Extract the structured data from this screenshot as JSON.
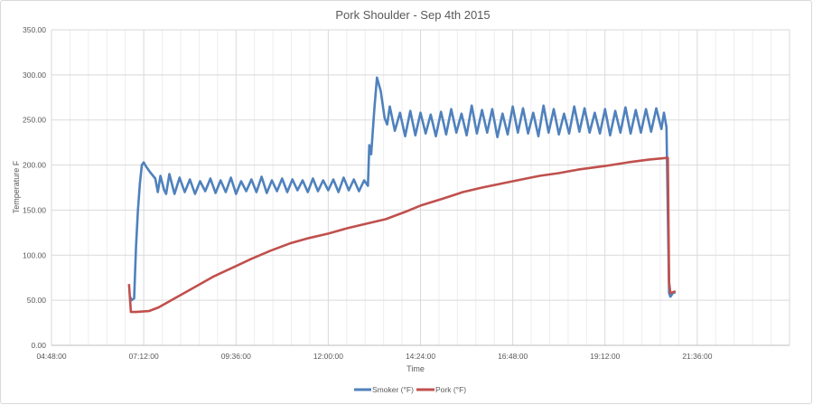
{
  "chart_data": {
    "type": "line",
    "title": "Pork Shoulder - Sep 4th 2015",
    "xlabel": "Time",
    "ylabel": "Temperature F",
    "xlim": [
      "04:48:00",
      "24:00:00"
    ],
    "ylim": [
      0,
      350
    ],
    "x_ticks": [
      "04:48:00",
      "07:12:00",
      "09:36:00",
      "12:00:00",
      "14:24:00",
      "16:48:00",
      "19:12:00",
      "21:36:00"
    ],
    "y_ticks": [
      "0.00",
      "50.00",
      "100.00",
      "150.00",
      "200.00",
      "250.00",
      "300.00",
      "350.00"
    ],
    "grid": true,
    "legend_position": "bottom",
    "series": [
      {
        "name": "Smoker (°F)",
        "color": "#4f81bd",
        "points": [
          [
            "06:50",
            55
          ],
          [
            "06:53",
            50
          ],
          [
            "06:57",
            52
          ],
          [
            "07:00",
            110
          ],
          [
            "07:03",
            150
          ],
          [
            "07:06",
            180
          ],
          [
            "07:09",
            200
          ],
          [
            "07:12",
            203
          ],
          [
            "07:16",
            198
          ],
          [
            "07:22",
            192
          ],
          [
            "07:30",
            185
          ],
          [
            "07:34",
            170
          ],
          [
            "07:38",
            188
          ],
          [
            "07:44",
            172
          ],
          [
            "07:47",
            168
          ],
          [
            "07:52",
            190
          ],
          [
            "08:00",
            168
          ],
          [
            "08:08",
            186
          ],
          [
            "08:16",
            170
          ],
          [
            "08:24",
            184
          ],
          [
            "08:32",
            168
          ],
          [
            "08:40",
            182
          ],
          [
            "08:48",
            171
          ],
          [
            "08:56",
            185
          ],
          [
            "09:04",
            169
          ],
          [
            "09:12",
            183
          ],
          [
            "09:20",
            170
          ],
          [
            "09:28",
            186
          ],
          [
            "09:36",
            168
          ],
          [
            "09:44",
            182
          ],
          [
            "09:52",
            171
          ],
          [
            "10:00",
            184
          ],
          [
            "10:08",
            170
          ],
          [
            "10:16",
            187
          ],
          [
            "10:24",
            169
          ],
          [
            "10:32",
            183
          ],
          [
            "10:40",
            171
          ],
          [
            "10:48",
            185
          ],
          [
            "10:56",
            170
          ],
          [
            "11:04",
            184
          ],
          [
            "11:12",
            172
          ],
          [
            "11:20",
            183
          ],
          [
            "11:28",
            170
          ],
          [
            "11:36",
            185
          ],
          [
            "11:44",
            171
          ],
          [
            "11:52",
            183
          ],
          [
            "12:00",
            172
          ],
          [
            "12:08",
            184
          ],
          [
            "12:16",
            170
          ],
          [
            "12:24",
            186
          ],
          [
            "12:32",
            172
          ],
          [
            "12:40",
            184
          ],
          [
            "12:48",
            171
          ],
          [
            "12:56",
            183
          ],
          [
            "13:02",
            177
          ],
          [
            "13:04",
            222
          ],
          [
            "13:07",
            212
          ],
          [
            "13:12",
            262
          ],
          [
            "13:16",
            297
          ],
          [
            "13:22",
            282
          ],
          [
            "13:28",
            252
          ],
          [
            "13:32",
            245
          ],
          [
            "13:36",
            265
          ],
          [
            "13:44",
            238
          ],
          [
            "13:52",
            258
          ],
          [
            "14:00",
            232
          ],
          [
            "14:08",
            260
          ],
          [
            "14:16",
            233
          ],
          [
            "14:24",
            258
          ],
          [
            "14:32",
            235
          ],
          [
            "14:40",
            256
          ],
          [
            "14:48",
            232
          ],
          [
            "14:56",
            259
          ],
          [
            "15:04",
            234
          ],
          [
            "15:12",
            262
          ],
          [
            "15:20",
            236
          ],
          [
            "15:28",
            257
          ],
          [
            "15:36",
            233
          ],
          [
            "15:44",
            266
          ],
          [
            "15:52",
            235
          ],
          [
            "16:00",
            261
          ],
          [
            "16:08",
            236
          ],
          [
            "16:16",
            262
          ],
          [
            "16:24",
            231
          ],
          [
            "16:32",
            257
          ],
          [
            "16:40",
            234
          ],
          [
            "16:48",
            265
          ],
          [
            "16:56",
            236
          ],
          [
            "17:04",
            263
          ],
          [
            "17:12",
            235
          ],
          [
            "17:20",
            258
          ],
          [
            "17:28",
            232
          ],
          [
            "17:36",
            266
          ],
          [
            "17:44",
            236
          ],
          [
            "17:52",
            262
          ],
          [
            "18:00",
            234
          ],
          [
            "18:08",
            257
          ],
          [
            "18:16",
            235
          ],
          [
            "18:24",
            265
          ],
          [
            "18:32",
            237
          ],
          [
            "18:40",
            263
          ],
          [
            "18:48",
            236
          ],
          [
            "18:56",
            258
          ],
          [
            "19:04",
            235
          ],
          [
            "19:12",
            262
          ],
          [
            "19:20",
            233
          ],
          [
            "19:28",
            260
          ],
          [
            "19:36",
            236
          ],
          [
            "19:44",
            264
          ],
          [
            "19:52",
            235
          ],
          [
            "20:00",
            261
          ],
          [
            "20:08",
            236
          ],
          [
            "20:16",
            262
          ],
          [
            "20:24",
            237
          ],
          [
            "20:32",
            263
          ],
          [
            "20:40",
            240
          ],
          [
            "20:44",
            258
          ],
          [
            "20:48",
            242
          ],
          [
            "20:52",
            58
          ],
          [
            "20:54",
            54
          ],
          [
            "20:58",
            58
          ],
          [
            "21:02",
            59
          ]
        ]
      },
      {
        "name": "Pork (°F)",
        "color": "#c0504d",
        "points": [
          [
            "06:49",
            68
          ],
          [
            "06:52",
            37
          ],
          [
            "07:00",
            37
          ],
          [
            "07:20",
            38
          ],
          [
            "07:35",
            42
          ],
          [
            "08:00",
            52
          ],
          [
            "08:30",
            64
          ],
          [
            "09:00",
            76
          ],
          [
            "09:36",
            88
          ],
          [
            "10:00",
            96
          ],
          [
            "10:30",
            105
          ],
          [
            "11:00",
            113
          ],
          [
            "11:30",
            119
          ],
          [
            "12:00",
            124
          ],
          [
            "12:30",
            130
          ],
          [
            "13:00",
            135
          ],
          [
            "13:30",
            140
          ],
          [
            "14:00",
            148
          ],
          [
            "14:24",
            155
          ],
          [
            "15:00",
            163
          ],
          [
            "15:30",
            170
          ],
          [
            "16:00",
            175
          ],
          [
            "16:48",
            182
          ],
          [
            "17:30",
            188
          ],
          [
            "18:00",
            191
          ],
          [
            "18:30",
            195
          ],
          [
            "19:12",
            199
          ],
          [
            "19:48",
            203
          ],
          [
            "20:20",
            206
          ],
          [
            "20:50",
            208
          ],
          [
            "20:52",
            70
          ],
          [
            "20:54",
            58
          ],
          [
            "21:02",
            60
          ]
        ]
      }
    ]
  }
}
